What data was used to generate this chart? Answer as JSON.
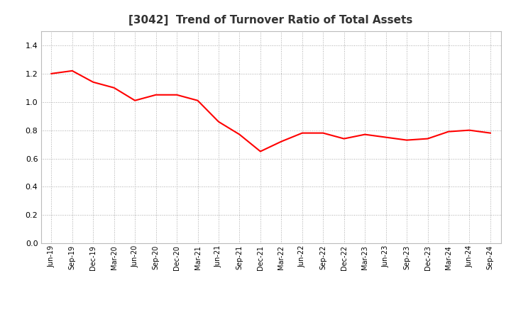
{
  "title": "[3042]  Trend of Turnover Ratio of Total Assets",
  "title_fontsize": 11,
  "line_color": "#FF0000",
  "line_width": 1.5,
  "background_color": "#FFFFFF",
  "grid_color": "#AAAAAA",
  "ylim": [
    0.0,
    1.5
  ],
  "yticks": [
    0.0,
    0.2,
    0.4,
    0.6,
    0.8,
    1.0,
    1.2,
    1.4
  ],
  "x_labels": [
    "Jun-19",
    "Sep-19",
    "Dec-19",
    "Mar-20",
    "Jun-20",
    "Sep-20",
    "Dec-20",
    "Mar-21",
    "Jun-21",
    "Sep-21",
    "Dec-21",
    "Mar-22",
    "Jun-22",
    "Sep-22",
    "Dec-22",
    "Mar-23",
    "Jun-23",
    "Sep-23",
    "Dec-23",
    "Mar-24",
    "Jun-24",
    "Sep-24"
  ],
  "values": [
    1.2,
    1.22,
    1.14,
    1.1,
    1.01,
    1.05,
    1.05,
    1.01,
    0.86,
    0.77,
    0.65,
    0.72,
    0.78,
    0.78,
    0.74,
    0.77,
    0.75,
    0.73,
    0.74,
    0.79,
    0.8,
    0.78
  ]
}
